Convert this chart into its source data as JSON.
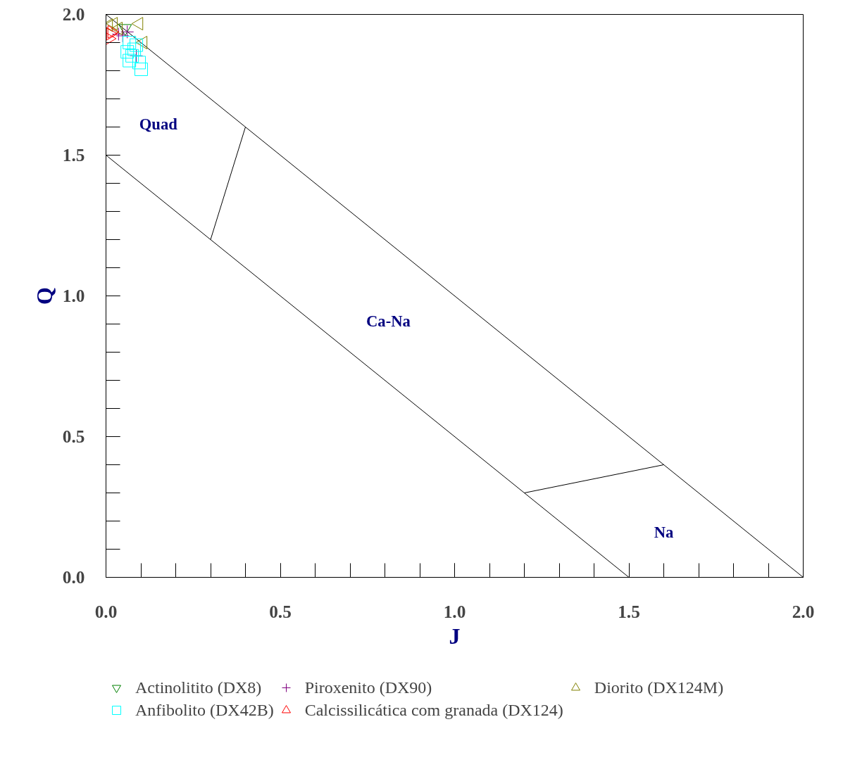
{
  "chart_data": {
    "type": "scatter",
    "xlabel": "J",
    "ylabel": "Q",
    "xlim": [
      0,
      2
    ],
    "ylim": [
      0,
      2
    ],
    "xticks": [
      {
        "value": 0,
        "label": "0.0"
      },
      {
        "value": 0.5,
        "label": "0.5"
      },
      {
        "value": 1,
        "label": "1.0"
      },
      {
        "value": 1.5,
        "label": "1.5"
      },
      {
        "value": 2,
        "label": "2.0"
      }
    ],
    "yticks": [
      {
        "value": 0,
        "label": "0.0"
      },
      {
        "value": 0.5,
        "label": "0.5"
      },
      {
        "value": 1,
        "label": "1.0"
      },
      {
        "value": 1.5,
        "label": "1.5"
      },
      {
        "value": 2,
        "label": "2.0"
      }
    ],
    "grid": false,
    "legend": "bottom",
    "series": [
      {
        "type": "line",
        "color": "#000000",
        "x": [
          0,
          2
        ],
        "values": [
          2,
          0
        ],
        "marker": "none"
      },
      {
        "type": "line",
        "color": "#000000",
        "x": [
          0,
          1.5
        ],
        "values": [
          1.5,
          0
        ],
        "marker": "none"
      },
      {
        "type": "line",
        "color": "#000000",
        "x": [
          0.3,
          0.4
        ],
        "values": [
          1.2,
          1.6
        ],
        "marker": "none"
      },
      {
        "type": "line",
        "color": "#000000",
        "x": [
          1.2,
          1.6
        ],
        "values": [
          0.3,
          0.4
        ],
        "marker": "none"
      },
      {
        "name": "Actinolitito (DX8)",
        "color": "#008000",
        "marker": "triangle_down",
        "x": [
          0.055
        ],
        "values": [
          1.951
        ]
      },
      {
        "name": "Piroxenito (DX90)",
        "color": "#800080",
        "marker": "cross",
        "x": [
          0.036,
          0.048,
          0.061,
          0.087
        ],
        "values": [
          1.93,
          1.924,
          1.938,
          1.853
        ]
      },
      {
        "name": "Diorito (DX124M)",
        "color": "#808000",
        "marker": "triangle_left",
        "x": [
          0.008,
          0.022,
          0.036,
          0.095,
          0.107
        ],
        "values": [
          1.962,
          1.967,
          1.95,
          1.967,
          1.9
        ]
      },
      {
        "name": "Anfibolito (DX42B)",
        "color": "#00ffff",
        "marker": "square",
        "x": [
          0.061,
          0.067,
          0.067,
          0.075,
          0.081,
          0.087,
          0.095,
          0.101
        ],
        "values": [
          1.867,
          1.9,
          1.836,
          1.853,
          1.876,
          1.891,
          1.829,
          1.805
        ]
      },
      {
        "name": "Calcissilicática com granada (DX124)",
        "color": "#ff0000",
        "marker": "triangle_right",
        "x": [
          0.008,
          0.012,
          0.016
        ],
        "values": [
          1.914,
          1.931,
          1.938
        ]
      }
    ],
    "annotations": [
      "Quad",
      "Ca-Na",
      "Na"
    ]
  }
}
